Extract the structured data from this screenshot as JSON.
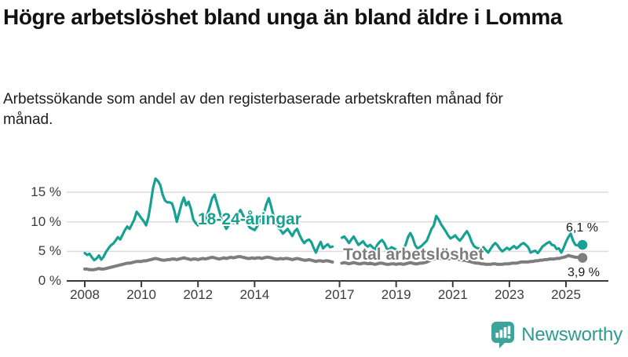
{
  "title": "Högre arbetslöshet bland unga än bland äldre i Lomma",
  "subtitle": "Arbetssökande som andel av den registerbaserade arbetskraften månad för månad.",
  "branding": {
    "logo_text": "Newsworthy",
    "logo_color": "#2f9a91",
    "logo_icon_color": "#3ea49b"
  },
  "colors": {
    "youth_line": "#16a192",
    "total_line": "#7d7d7d",
    "grid": "#dcdcdc",
    "axis": "#3a3a3a"
  },
  "chart_data": {
    "type": "line",
    "title": "Högre arbetslöshet bland unga än bland äldre i Lomma",
    "subtitle": "Arbetssökande som andel av den registerbaserade arbetskraften månad för månad.",
    "x_start_year": 2008,
    "x_start_month": 1,
    "x_end_year": 2025,
    "x_end_month": 8,
    "x_ticks": [
      {
        "year": 2008,
        "label": "2008"
      },
      {
        "year": 2010,
        "label": "2010"
      },
      {
        "year": 2012,
        "label": "2012"
      },
      {
        "year": 2014,
        "label": "2014"
      },
      {
        "year": 2017,
        "label": "2017"
      },
      {
        "year": 2019,
        "label": "2019"
      },
      {
        "year": 2021,
        "label": "2021"
      },
      {
        "year": 2023,
        "label": "2023"
      },
      {
        "year": 2025,
        "label": "2025"
      }
    ],
    "y_ticks": [
      {
        "value": 0,
        "label": "0 %"
      },
      {
        "value": 5,
        "label": "5 %"
      },
      {
        "value": 10,
        "label": "10 %"
      },
      {
        "value": 15,
        "label": "15 %"
      }
    ],
    "ylim": [
      0,
      18
    ],
    "grid": true,
    "legend_position": "inline-labels",
    "data_gap": "late 2016 – early 2017",
    "series": [
      {
        "name": "Total arbetslöshet",
        "color": "#7d7d7d",
        "end_label": "3,9 %",
        "end_value": 3.9,
        "values": [
          2.0,
          2.0,
          1.9,
          1.9,
          1.9,
          2.0,
          2.1,
          2.0,
          2.0,
          2.1,
          2.2,
          2.3,
          2.4,
          2.5,
          2.6,
          2.7,
          2.8,
          2.9,
          3.0,
          3.0,
          3.1,
          3.2,
          3.3,
          3.3,
          3.3,
          3.4,
          3.4,
          3.5,
          3.6,
          3.7,
          3.8,
          3.7,
          3.6,
          3.5,
          3.5,
          3.6,
          3.6,
          3.7,
          3.7,
          3.6,
          3.7,
          3.8,
          3.9,
          3.8,
          3.7,
          3.6,
          3.7,
          3.7,
          3.6,
          3.7,
          3.8,
          3.7,
          3.8,
          3.9,
          4.0,
          3.9,
          3.8,
          3.7,
          3.8,
          3.9,
          3.8,
          3.9,
          4.0,
          3.9,
          4.0,
          4.1,
          4.1,
          4.0,
          3.9,
          3.8,
          3.8,
          3.9,
          3.8,
          3.9,
          3.9,
          3.8,
          3.9,
          4.0,
          4.0,
          3.9,
          3.8,
          3.7,
          3.7,
          3.8,
          3.7,
          3.8,
          3.8,
          3.7,
          3.6,
          3.7,
          3.8,
          3.7,
          3.6,
          3.5,
          3.5,
          3.6,
          3.5,
          3.4,
          3.3,
          3.4,
          3.4,
          3.3,
          3.4,
          3.4,
          3.3,
          3.2,
          null,
          null,
          null,
          3.0,
          3.1,
          3.0,
          2.9,
          3.0,
          3.1,
          3.0,
          2.9,
          2.9,
          3.0,
          3.0,
          2.9,
          3.0,
          2.9,
          2.8,
          2.9,
          3.0,
          3.0,
          2.9,
          2.8,
          2.8,
          2.9,
          2.9,
          2.8,
          2.9,
          2.9,
          2.8,
          2.9,
          3.0,
          3.1,
          3.0,
          2.9,
          2.9,
          3.0,
          3.0,
          3.1,
          3.2,
          3.4,
          3.6,
          3.7,
          3.9,
          3.9,
          3.8,
          3.8,
          3.7,
          3.7,
          3.8,
          3.8,
          3.8,
          3.7,
          3.6,
          3.5,
          3.5,
          3.4,
          3.3,
          3.2,
          3.1,
          3.0,
          3.0,
          2.9,
          2.9,
          2.8,
          2.8,
          2.8,
          2.9,
          2.9,
          2.8,
          2.8,
          2.8,
          2.9,
          2.9,
          2.9,
          3.0,
          3.0,
          3.0,
          3.1,
          3.2,
          3.2,
          3.2,
          3.2,
          3.3,
          3.3,
          3.4,
          3.4,
          3.5,
          3.5,
          3.6,
          3.6,
          3.7,
          3.7,
          3.7,
          3.8,
          3.8,
          3.9,
          4.0,
          4.1,
          4.3,
          4.2,
          4.1,
          4.0,
          4.0,
          3.9,
          3.9
        ]
      },
      {
        "name": "18-24-åringar",
        "color": "#16a192",
        "end_label": "6,1 %",
        "end_value": 6.1,
        "values": [
          4.7,
          4.4,
          4.6,
          4.0,
          3.5,
          3.8,
          4.3,
          3.6,
          4.1,
          4.9,
          5.5,
          6.0,
          6.3,
          6.8,
          7.4,
          7.0,
          7.8,
          8.6,
          9.2,
          8.8,
          9.6,
          10.4,
          11.7,
          11.2,
          10.6,
          10.1,
          9.4,
          10.8,
          13.2,
          15.8,
          17.3,
          16.9,
          16.2,
          14.6,
          13.6,
          13.3,
          13.3,
          13.1,
          11.8,
          10.0,
          11.5,
          13.0,
          14.1,
          12.8,
          13.4,
          12.2,
          10.4,
          9.8,
          9.4,
          9.9,
          10.6,
          10.2,
          11.3,
          12.6,
          14.0,
          14.6,
          13.2,
          11.8,
          10.4,
          9.6,
          8.8,
          9.4,
          10.2,
          9.8,
          10.6,
          11.4,
          12.0,
          11.2,
          10.4,
          9.6,
          9.0,
          8.8,
          8.6,
          9.2,
          10.0,
          10.8,
          11.6,
          13.0,
          14.0,
          12.6,
          11.0,
          9.8,
          9.0,
          8.6,
          8.0,
          8.4,
          8.8,
          8.2,
          7.6,
          8.4,
          8.8,
          7.8,
          7.0,
          6.4,
          6.8,
          7.0,
          6.6,
          5.6,
          4.8,
          5.8,
          6.6,
          5.5,
          5.9,
          6.2,
          5.7,
          5.8,
          null,
          null,
          null,
          7.3,
          7.5,
          7.0,
          6.4,
          7.0,
          7.5,
          6.8,
          6.1,
          6.4,
          6.7,
          6.1,
          5.8,
          6.1,
          5.7,
          5.3,
          6.1,
          6.6,
          6.9,
          6.4,
          5.5,
          5.3,
          5.7,
          5.5,
          5.3,
          4.9,
          4.7,
          5.5,
          6.1,
          7.4,
          8.1,
          7.3,
          6.1,
          5.5,
          5.7,
          6.0,
          6.4,
          6.8,
          7.8,
          8.8,
          9.4,
          11.0,
          10.4,
          9.6,
          9.0,
          8.4,
          7.7,
          7.2,
          7.4,
          7.7,
          7.2,
          6.8,
          7.3,
          7.9,
          8.4,
          7.7,
          6.6,
          5.9,
          5.6,
          5.5,
          5.3,
          5.7,
          5.2,
          4.8,
          5.4,
          6.0,
          6.4,
          6.0,
          5.4,
          5.0,
          5.3,
          5.6,
          5.3,
          5.6,
          5.9,
          5.5,
          5.8,
          6.2,
          6.4,
          6.1,
          5.7,
          4.8,
          5.0,
          5.1,
          4.7,
          5.2,
          5.8,
          6.1,
          6.4,
          6.6,
          6.1,
          6.0,
          5.4,
          5.5,
          4.8,
          5.6,
          6.6,
          7.4,
          8.0,
          6.8,
          6.1,
          6.0,
          6.2,
          6.1
        ]
      }
    ]
  }
}
